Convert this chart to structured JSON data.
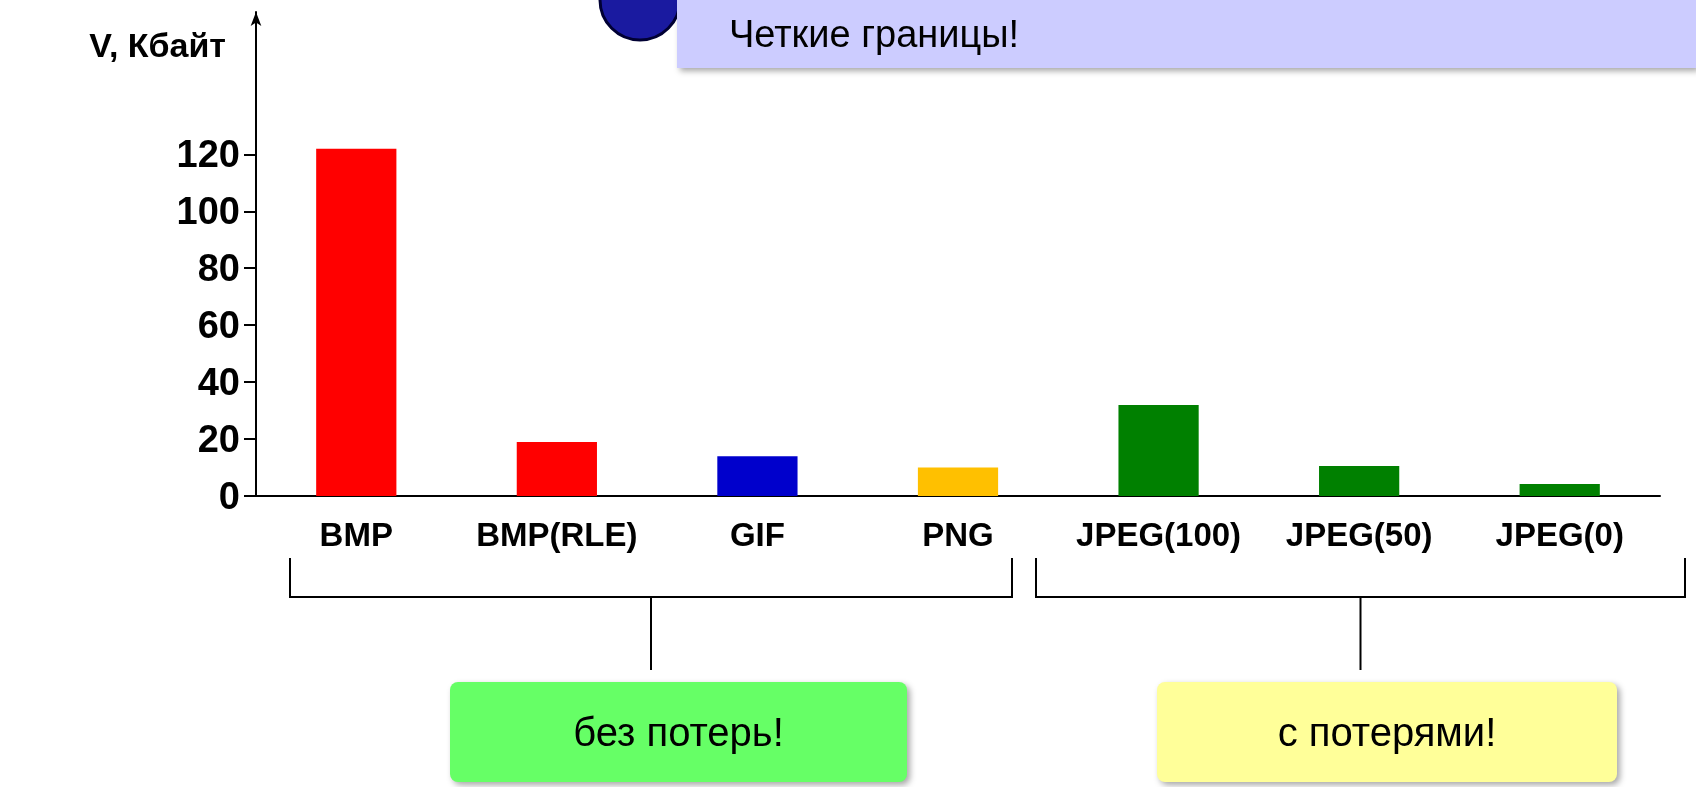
{
  "chart_data": {
    "type": "bar",
    "ylabel": "V, Кбайт",
    "categories": [
      "BMP",
      "BMP(RLE)",
      "GIF",
      "PNG",
      "JPEG(100)",
      "JPEG(50)",
      "JPEG(0)"
    ],
    "values": [
      122,
      19,
      14,
      10,
      32,
      10.5,
      4.2
    ],
    "colors": [
      "#ff0000",
      "#ff0000",
      "#0000cc",
      "#ffc000",
      "#008000",
      "#008000",
      "#008000"
    ],
    "ylim": [
      0,
      170
    ],
    "yticks": [
      0,
      20,
      40,
      60,
      80,
      100,
      120
    ],
    "grid": false,
    "annotations": [
      "Четкие границы!",
      "без потерь!",
      "с потерями!"
    ]
  }
}
